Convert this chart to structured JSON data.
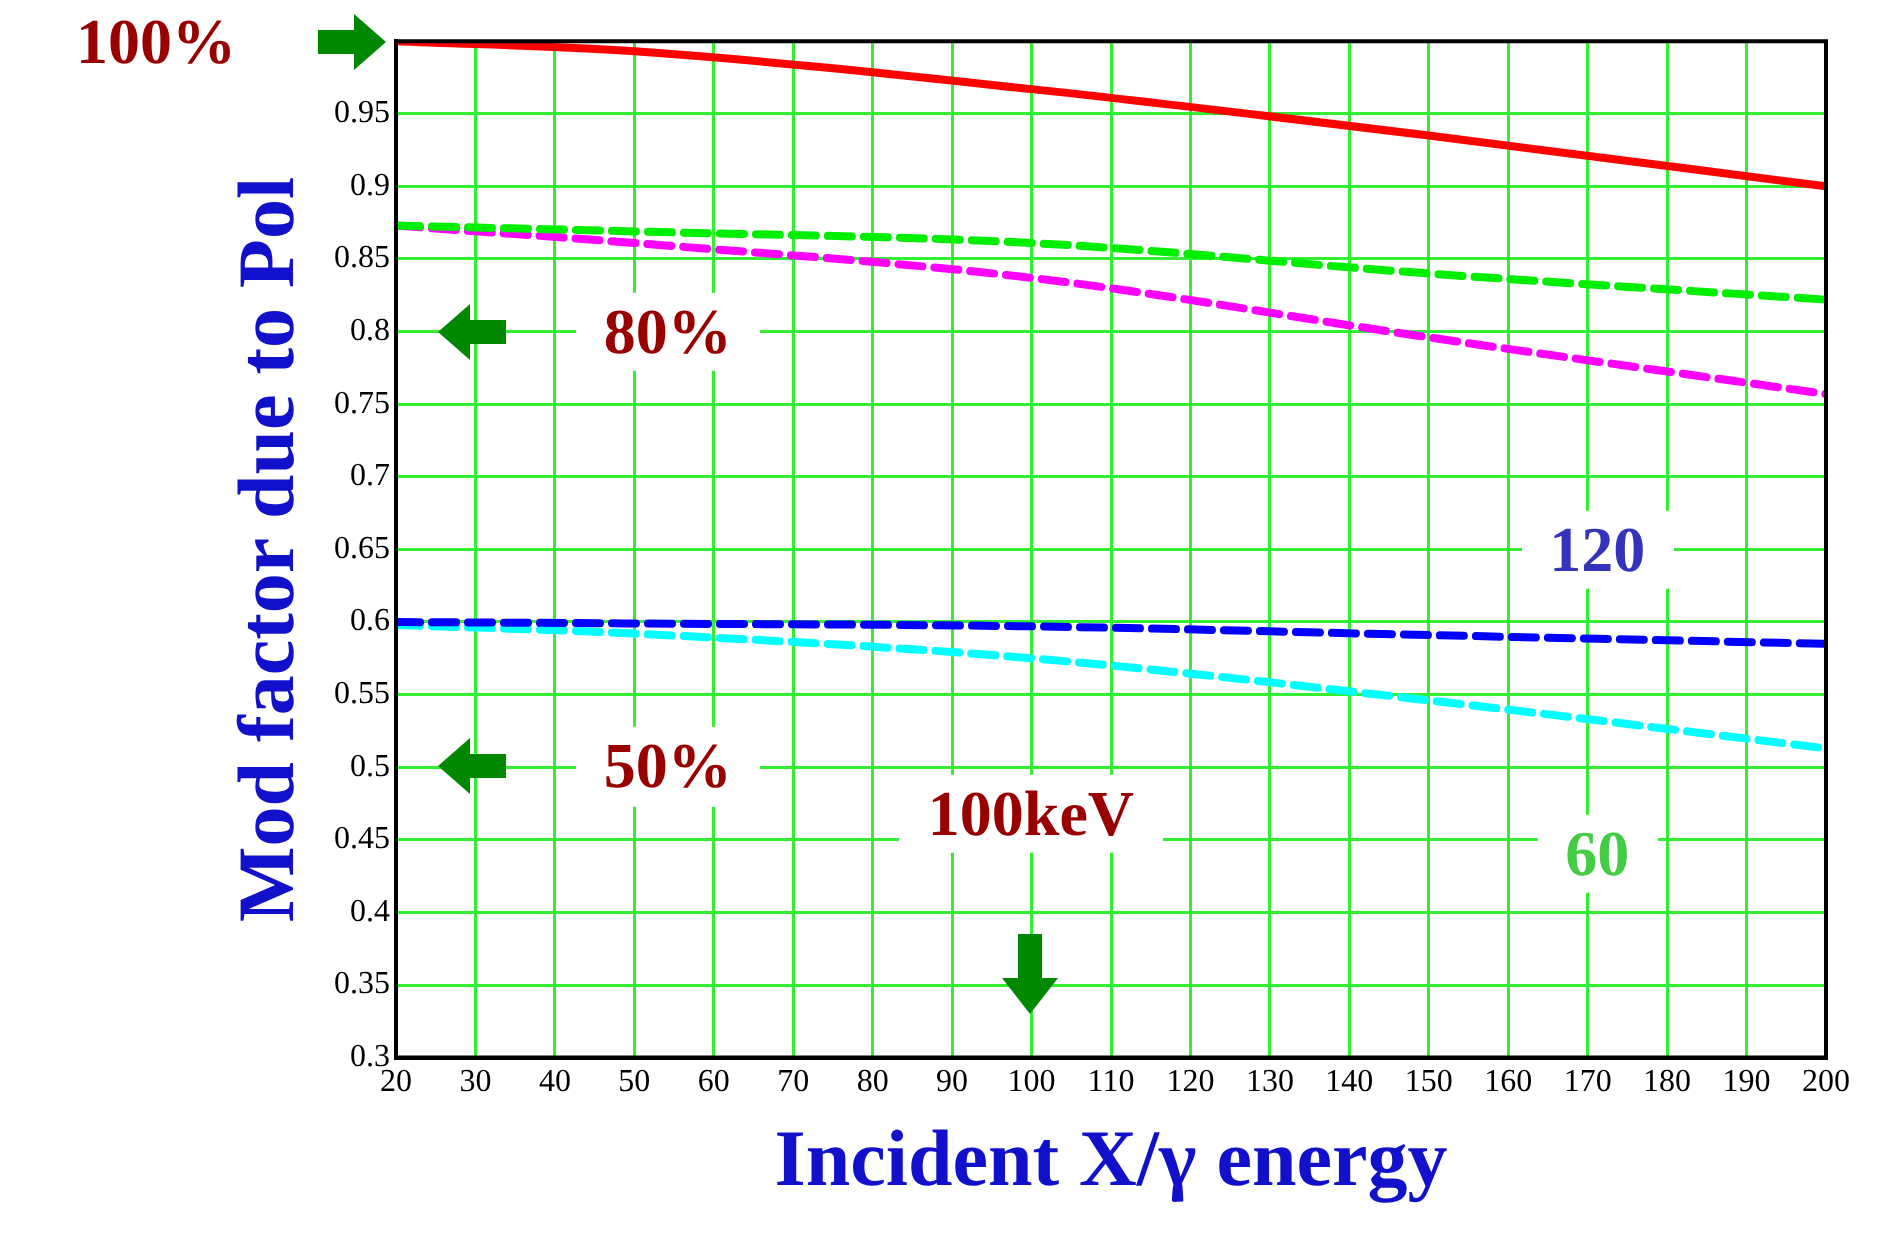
{
  "chart_data": {
    "type": "line",
    "xlabel": "Incident X/γ energy",
    "ylabel": "Mod factor due to Pol",
    "x": [
      20,
      50,
      100,
      150,
      200
    ],
    "series": [
      {
        "color": "#ff0000",
        "line_style": "solid",
        "values": [
          1.0,
          0.993,
          0.967,
          0.935,
          0.9
        ]
      },
      {
        "color": "#00ee00",
        "line_style": "dashed",
        "values": [
          0.873,
          0.869,
          0.861,
          0.84,
          0.822
        ]
      },
      {
        "color": "#ff00ff",
        "line_style": "dashed",
        "values": [
          0.873,
          0.861,
          0.837,
          0.796,
          0.757
        ]
      },
      {
        "color": "#0000ff",
        "line_style": "dashed",
        "values": [
          0.6,
          0.599,
          0.597,
          0.591,
          0.585
        ]
      },
      {
        "color": "#00ffff",
        "line_style": "dashed",
        "values": [
          0.598,
          0.592,
          0.575,
          0.546,
          0.513
        ]
      }
    ],
    "xlim": [
      20,
      200
    ],
    "xticks": [
      20,
      30,
      40,
      50,
      60,
      70,
      80,
      90,
      100,
      110,
      120,
      130,
      140,
      150,
      160,
      170,
      180,
      190,
      200
    ],
    "ylim": [
      0.3,
      1
    ],
    "yticks": [
      0.3,
      0.35,
      0.4,
      0.45,
      0.5,
      0.55,
      0.6,
      0.65,
      0.7,
      0.75,
      0.8,
      0.85,
      0.9,
      0.95,
      {
        "value": 1,
        "label": null
      }
    ],
    "grid": true,
    "legend": false,
    "marker": "none",
    "annotations": [
      "100%",
      "80%",
      "50%",
      "100keV",
      "120",
      "60"
    ]
  }
}
